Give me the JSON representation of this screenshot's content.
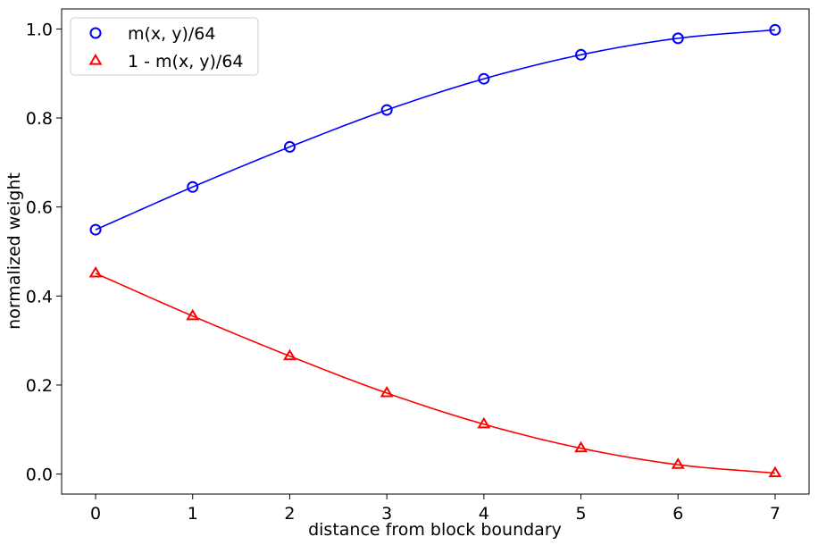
{
  "chart_data": {
    "type": "line",
    "xlabel": "distance from block boundary",
    "ylabel": "normalized weight",
    "x": [
      0,
      1,
      2,
      3,
      4,
      5,
      6,
      7
    ],
    "xlim": [
      -0.35,
      7.35
    ],
    "ylim": [
      -0.045,
      1.045
    ],
    "xticks": [
      0,
      1,
      2,
      3,
      4,
      5,
      6,
      7
    ],
    "yticks": [
      0.0,
      0.2,
      0.4,
      0.6,
      0.8,
      1.0
    ],
    "xtick_labels": [
      "0",
      "1",
      "2",
      "3",
      "4",
      "5",
      "6",
      "7"
    ],
    "ytick_labels": [
      "0.0",
      "0.2",
      "0.4",
      "0.6",
      "0.8",
      "1.0"
    ],
    "grid": false,
    "legend_position": "top-left",
    "series": [
      {
        "name": "m(x, y)/64",
        "marker": "circle",
        "color": "#0000ff",
        "values": [
          0.549,
          0.645,
          0.735,
          0.818,
          0.888,
          0.942,
          0.979,
          0.998
        ]
      },
      {
        "name": "1 - m(x, y)/64",
        "marker": "triangle",
        "color": "#ff0000",
        "values": [
          0.451,
          0.355,
          0.265,
          0.182,
          0.112,
          0.058,
          0.021,
          0.002
        ]
      }
    ]
  }
}
